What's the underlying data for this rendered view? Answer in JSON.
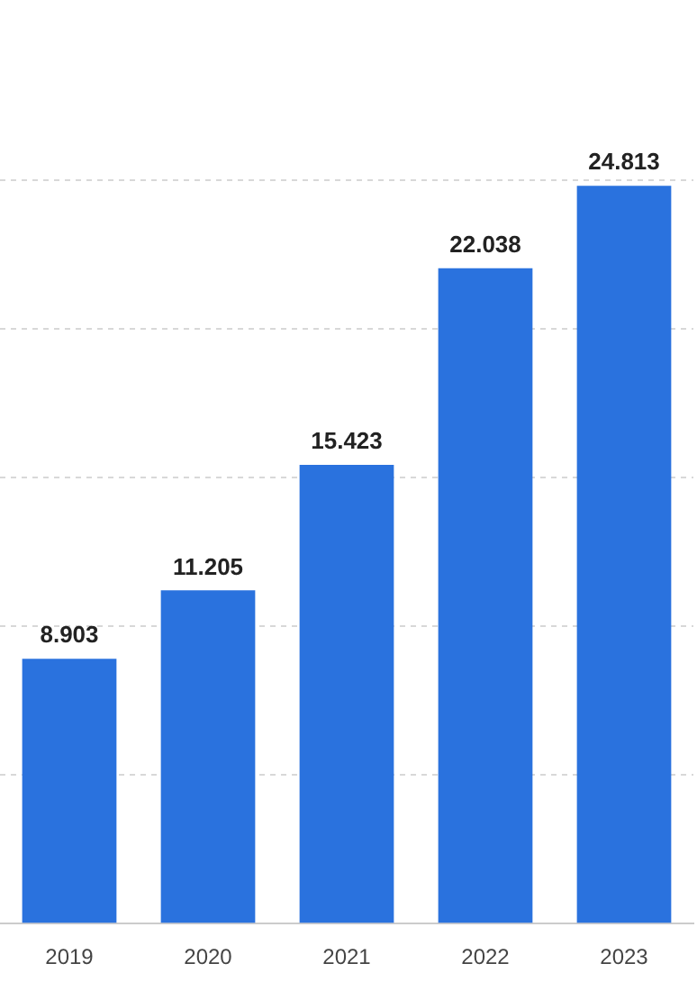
{
  "chart_data": {
    "type": "bar",
    "categories": [
      "2019",
      "2020",
      "2021",
      "2022",
      "2023"
    ],
    "values": [
      8.903,
      11.205,
      15.423,
      22.038,
      24.813
    ],
    "color": "#2a72de",
    "data_labels": true,
    "tick_labels": "x",
    "grid": "y"
  }
}
